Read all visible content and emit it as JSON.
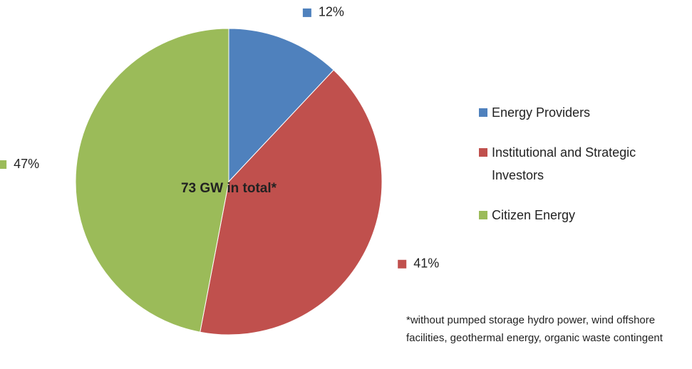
{
  "chart_data": {
    "type": "pie",
    "categories": [
      "Energy Providers",
      "Institutional and Strategic Investors",
      "Citizen Energy"
    ],
    "values": [
      12,
      41,
      47
    ],
    "value_labels": [
      "12%",
      "41%",
      "47%"
    ],
    "colors": [
      "#4f81bd",
      "#c0504d",
      "#9bbb59"
    ],
    "center_label": "73 GW in total*",
    "footnote": "*without pumped storage hydro power, wind offshore facilities, geothermal energy, organic waste contingent",
    "legend": "right"
  }
}
